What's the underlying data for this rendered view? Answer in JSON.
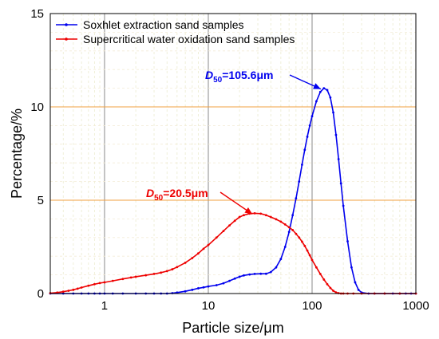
{
  "chart_data": {
    "type": "line",
    "xscale": "log",
    "xlim": [
      0.3,
      1000
    ],
    "ylim": [
      0,
      15
    ],
    "xticks": [
      1,
      10,
      100,
      1000
    ],
    "xtick_labels": [
      "1",
      "10",
      "100",
      "1000"
    ],
    "yticks": [
      0,
      5,
      10,
      15
    ],
    "ytick_labels": [
      "0",
      "5",
      "10",
      "15"
    ],
    "xlabel": "Particle size/μm",
    "ylabel": "Percentage/%",
    "grid": {
      "vertical": "gray",
      "horizontal": "orange"
    },
    "legend_position": "top-left",
    "series": [
      {
        "name": "Soxhlet extraction sand samples",
        "color": "#0000ee",
        "x": [
          0.3,
          0.4,
          0.5,
          0.6,
          0.7,
          0.8,
          0.9,
          1.0,
          1.2,
          1.5,
          2,
          2.5,
          3,
          3.5,
          4,
          4.5,
          5,
          6,
          7,
          8,
          9,
          10,
          12,
          14,
          16,
          18,
          20,
          22,
          25,
          28,
          32,
          36,
          40,
          45,
          50,
          55,
          60,
          65,
          70,
          75,
          80,
          85,
          90,
          95,
          100,
          110,
          120,
          130,
          140,
          150,
          160,
          170,
          180,
          190,
          200,
          220,
          240,
          260,
          280,
          300,
          350,
          400,
          500,
          600,
          700,
          800,
          900,
          1000
        ],
        "y": [
          0,
          0,
          0,
          0,
          0,
          0,
          0,
          0,
          0,
          0,
          0,
          0,
          0,
          0,
          0,
          0.02,
          0.05,
          0.12,
          0.2,
          0.28,
          0.33,
          0.38,
          0.45,
          0.55,
          0.68,
          0.8,
          0.9,
          0.97,
          1.02,
          1.05,
          1.06,
          1.06,
          1.15,
          1.4,
          1.85,
          2.5,
          3.3,
          4.2,
          5.1,
          6.0,
          6.9,
          7.7,
          8.4,
          9.0,
          9.5,
          10.3,
          10.8,
          11.0,
          10.9,
          10.5,
          9.7,
          8.5,
          7.2,
          5.9,
          4.7,
          2.8,
          1.4,
          0.6,
          0.2,
          0.05,
          0,
          0,
          0,
          0,
          0,
          0,
          0,
          0
        ]
      },
      {
        "name": "Supercritical water oxidation sand samples",
        "color": "#ee0000",
        "x": [
          0.3,
          0.35,
          0.4,
          0.45,
          0.5,
          0.55,
          0.6,
          0.7,
          0.8,
          0.9,
          1.0,
          1.2,
          1.5,
          1.8,
          2,
          2.5,
          3,
          3.5,
          4,
          4.5,
          5,
          6,
          7,
          8,
          9,
          10,
          12,
          14,
          16,
          18,
          20,
          22,
          25,
          28,
          32,
          36,
          40,
          45,
          50,
          55,
          60,
          65,
          70,
          75,
          80,
          85,
          90,
          95,
          100,
          110,
          120,
          130,
          140,
          150,
          160,
          170,
          180,
          190,
          200,
          220,
          250,
          300,
          400,
          500,
          700,
          1000
        ],
        "y": [
          0.02,
          0.05,
          0.1,
          0.15,
          0.2,
          0.26,
          0.32,
          0.42,
          0.5,
          0.56,
          0.6,
          0.68,
          0.78,
          0.86,
          0.9,
          0.98,
          1.05,
          1.12,
          1.2,
          1.3,
          1.42,
          1.65,
          1.9,
          2.15,
          2.4,
          2.6,
          3.0,
          3.35,
          3.65,
          3.9,
          4.1,
          4.2,
          4.28,
          4.3,
          4.28,
          4.2,
          4.1,
          3.98,
          3.85,
          3.7,
          3.55,
          3.4,
          3.2,
          3.0,
          2.78,
          2.55,
          2.3,
          2.05,
          1.8,
          1.4,
          1.05,
          0.75,
          0.5,
          0.3,
          0.15,
          0.06,
          0.02,
          0,
          0,
          0,
          0,
          0,
          0,
          0,
          0,
          0
        ]
      }
    ],
    "annotations": [
      {
        "main": "D",
        "sub": "50",
        "value": "=105.6μm",
        "color": "#0000ee",
        "target_x": 128,
        "target_y": 11.0
      },
      {
        "main": "D",
        "sub": "50",
        "value": "=20.5μm",
        "color": "#ee0000",
        "target_x": 28,
        "target_y": 4.3
      }
    ]
  }
}
